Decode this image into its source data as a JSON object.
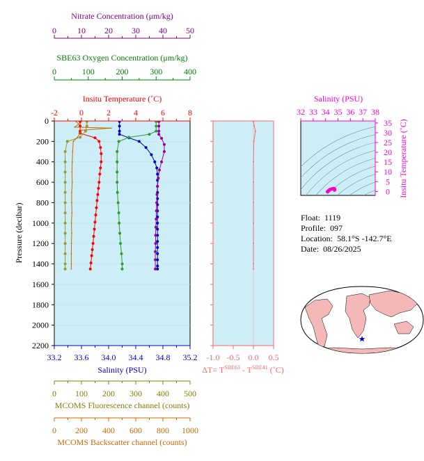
{
  "chart_data": {
    "type": "line",
    "float_info": {
      "float_label": "Float:",
      "float": "1119",
      "profile_label": "Profile:",
      "profile": "097",
      "location_label": "Location:",
      "location": "58.1°S  -142.7°E",
      "date_label": "Date:",
      "date": "08/26/2025"
    },
    "axes": {
      "pressure": {
        "label": "Pressure (decibar)",
        "range": [
          0,
          2200
        ],
        "ticks": [
          "0",
          "200",
          "400",
          "600",
          "800",
          "1000",
          "1200",
          "1400",
          "1600",
          "1800",
          "2000",
          "2200"
        ]
      },
      "temperature": {
        "label": "Insitu Temperature (˚C)",
        "range": [
          -2,
          8
        ],
        "color": "#ff0000",
        "ticks": [
          "-2",
          "0",
          "2",
          "4",
          "6",
          "8"
        ]
      },
      "salinity": {
        "label": "Salinity (PSU)",
        "range": [
          33.2,
          35.2
        ],
        "color": "#0000cc",
        "ticks": [
          "33.2",
          "33.6",
          "34.0",
          "34.4",
          "34.8",
          "35.2"
        ]
      },
      "nitrate": {
        "label": "Nitrate Concentration (μm/kg)",
        "range": [
          0,
          50
        ],
        "color": "#800080",
        "ticks": [
          "0",
          "10",
          "20",
          "30",
          "40",
          "50"
        ]
      },
      "oxygen": {
        "label": "SBE63 Oxygen Concentration (μm/kg)",
        "range": [
          0,
          400
        ],
        "color": "#008000",
        "ticks": [
          "0",
          "100",
          "200",
          "300",
          "400"
        ]
      },
      "fluorescence": {
        "label": "MCOMS Fluorescence channel (counts)",
        "range": [
          0,
          500
        ],
        "color": "#808000",
        "ticks": [
          "0",
          "100",
          "200",
          "300",
          "400",
          "500"
        ]
      },
      "backscatter": {
        "label": "MCOMS Backscatter channel (counts)",
        "range": [
          0,
          1000
        ],
        "color": "#cc6600",
        "ticks": [
          "0",
          "200",
          "400",
          "600",
          "800",
          "1000"
        ]
      },
      "delta_t": {
        "label_prefix": "ΔT= T",
        "sup1": "SBE63",
        "label_mid": " - T",
        "sup2": "SBE41",
        "label_suffix": " (˚C)",
        "range": [
          -1.0,
          0.5
        ],
        "color": "#ff6666",
        "ticks": [
          "-1.0",
          "-0.5",
          "0.0",
          "0.5"
        ]
      }
    },
    "series": [
      {
        "name": "Temperature",
        "axis": "temperature",
        "color": "#ff0000",
        "points": [
          [
            -0.1,
            5
          ],
          [
            -0.1,
            50
          ],
          [
            -0.1,
            100
          ],
          [
            -0.1,
            120
          ],
          [
            1.0,
            165
          ],
          [
            1.3,
            200
          ],
          [
            1.4,
            260
          ],
          [
            1.45,
            320
          ],
          [
            1.45,
            400
          ],
          [
            1.4,
            460
          ],
          [
            1.35,
            520
          ],
          [
            1.3,
            600
          ],
          [
            1.25,
            660
          ],
          [
            1.2,
            720
          ],
          [
            1.15,
            780
          ],
          [
            1.1,
            850
          ],
          [
            1.05,
            920
          ],
          [
            1.0,
            990
          ],
          [
            0.95,
            1060
          ],
          [
            0.9,
            1130
          ],
          [
            0.85,
            1200
          ],
          [
            0.8,
            1260
          ],
          [
            0.75,
            1320
          ],
          [
            0.7,
            1390
          ],
          [
            0.65,
            1450
          ]
        ]
      },
      {
        "name": "Salinity",
        "axis": "salinity",
        "color": "#0000cc",
        "points": [
          [
            34.16,
            5
          ],
          [
            34.16,
            50
          ],
          [
            34.16,
            100
          ],
          [
            34.16,
            130
          ],
          [
            34.3,
            165
          ],
          [
            34.45,
            200
          ],
          [
            34.55,
            260
          ],
          [
            34.63,
            330
          ],
          [
            34.68,
            400
          ],
          [
            34.71,
            460
          ],
          [
            34.72,
            520
          ],
          [
            34.72,
            580
          ],
          [
            34.72,
            640
          ],
          [
            34.72,
            700
          ],
          [
            34.72,
            760
          ],
          [
            34.72,
            820
          ],
          [
            34.72,
            880
          ],
          [
            34.72,
            940
          ],
          [
            34.72,
            1000
          ],
          [
            34.72,
            1060
          ],
          [
            34.72,
            1120
          ],
          [
            34.72,
            1180
          ],
          [
            34.72,
            1240
          ],
          [
            34.72,
            1300
          ],
          [
            34.72,
            1360
          ],
          [
            34.72,
            1420
          ],
          [
            34.72,
            1450
          ]
        ]
      },
      {
        "name": "Nitrate",
        "axis": "nitrate",
        "color": "#990099",
        "points": [
          [
            38.5,
            5
          ],
          [
            38.5,
            50
          ],
          [
            38.5,
            100
          ],
          [
            38.5,
            130
          ],
          [
            39.5,
            170
          ],
          [
            40.5,
            230
          ],
          [
            40.5,
            300
          ],
          [
            39.5,
            400
          ],
          [
            38.7,
            480
          ],
          [
            38.3,
            560
          ],
          [
            38.0,
            640
          ],
          [
            37.8,
            720
          ],
          [
            37.7,
            800
          ],
          [
            37.6,
            880
          ],
          [
            37.5,
            960
          ],
          [
            37.4,
            1040
          ],
          [
            37.3,
            1120
          ],
          [
            37.3,
            1200
          ],
          [
            37.2,
            1280
          ],
          [
            37.2,
            1360
          ],
          [
            37.2,
            1450
          ]
        ]
      },
      {
        "name": "Oxygen",
        "axis": "oxygen",
        "color": "#339933",
        "points": [
          [
            300,
            5
          ],
          [
            300,
            50
          ],
          [
            300,
            100
          ],
          [
            280,
            130
          ],
          [
            220,
            160
          ],
          [
            190,
            200
          ],
          [
            185,
            300
          ],
          [
            185,
            400
          ],
          [
            185,
            500
          ],
          [
            185,
            600
          ],
          [
            186,
            700
          ],
          [
            188,
            800
          ],
          [
            190,
            900
          ],
          [
            191,
            1000
          ],
          [
            193,
            1100
          ],
          [
            195,
            1200
          ],
          [
            198,
            1300
          ],
          [
            200,
            1400
          ],
          [
            200,
            1450
          ]
        ]
      },
      {
        "name": "Fluorescence",
        "axis": "fluorescence",
        "color": "#999933",
        "points": [
          [
            120,
            5
          ],
          [
            120,
            50
          ],
          [
            115,
            100
          ],
          [
            95,
            160
          ],
          [
            48,
            200
          ],
          [
            40,
            300
          ],
          [
            40,
            400
          ],
          [
            40,
            500
          ],
          [
            40,
            600
          ],
          [
            40,
            700
          ],
          [
            40,
            800
          ],
          [
            40,
            900
          ],
          [
            40,
            1000
          ],
          [
            40,
            1100
          ],
          [
            40,
            1200
          ],
          [
            40,
            1300
          ],
          [
            40,
            1400
          ],
          [
            40,
            1450
          ]
        ]
      },
      {
        "name": "Backscatter",
        "axis": "backscatter",
        "color": "#cc6600",
        "points": [
          [
            160,
            5
          ],
          [
            180,
            30
          ],
          [
            150,
            60
          ],
          [
            420,
            70
          ],
          [
            200,
            90
          ],
          [
            190,
            120
          ],
          [
            170,
            160
          ],
          [
            140,
            200
          ],
          [
            135,
            300
          ],
          [
            132,
            400
          ],
          [
            130,
            500
          ],
          [
            132,
            600
          ],
          [
            128,
            700
          ],
          [
            128,
            800
          ],
          [
            130,
            900
          ],
          [
            126,
            1000
          ],
          [
            128,
            1100
          ],
          [
            126,
            1200
          ],
          [
            125,
            1300
          ],
          [
            125,
            1400
          ],
          [
            125,
            1450
          ]
        ]
      },
      {
        "name": "DeltaT",
        "axis": "delta_t",
        "color": "#ff6666",
        "points": [
          [
            0.0,
            5
          ],
          [
            0.02,
            50
          ],
          [
            0.05,
            100
          ],
          [
            0.01,
            200
          ],
          [
            0.0,
            400
          ],
          [
            0.0,
            600
          ],
          [
            0.0,
            800
          ],
          [
            0.0,
            1000
          ],
          [
            0.0,
            1200
          ],
          [
            0.0,
            1400
          ],
          [
            0.0,
            1450
          ]
        ]
      }
    ],
    "ts_plot": {
      "title": "Salinity (PSU)",
      "ylabel": "Insitu Temperature (˚C)",
      "x_ticks": [
        "32",
        "33",
        "34",
        "35",
        "36",
        "37",
        "38"
      ],
      "x_range": [
        32,
        38
      ],
      "y_ticks": [
        "0",
        "5",
        "10",
        "15",
        "20",
        "25",
        "30",
        "35"
      ],
      "y_range": [
        -2,
        36
      ],
      "color": "#ff00cc",
      "points": [
        [
          34.15,
          -0.1
        ],
        [
          34.25,
          0.5
        ],
        [
          34.35,
          1.0
        ],
        [
          34.5,
          1.3
        ],
        [
          34.6,
          1.45
        ],
        [
          34.68,
          1.45
        ],
        [
          34.71,
          1.35
        ],
        [
          34.72,
          1.2
        ],
        [
          34.72,
          1.0
        ],
        [
          34.72,
          0.7
        ]
      ]
    },
    "map": {
      "marker_color": "#0000cc",
      "land_color": "#f4b8b8"
    }
  }
}
